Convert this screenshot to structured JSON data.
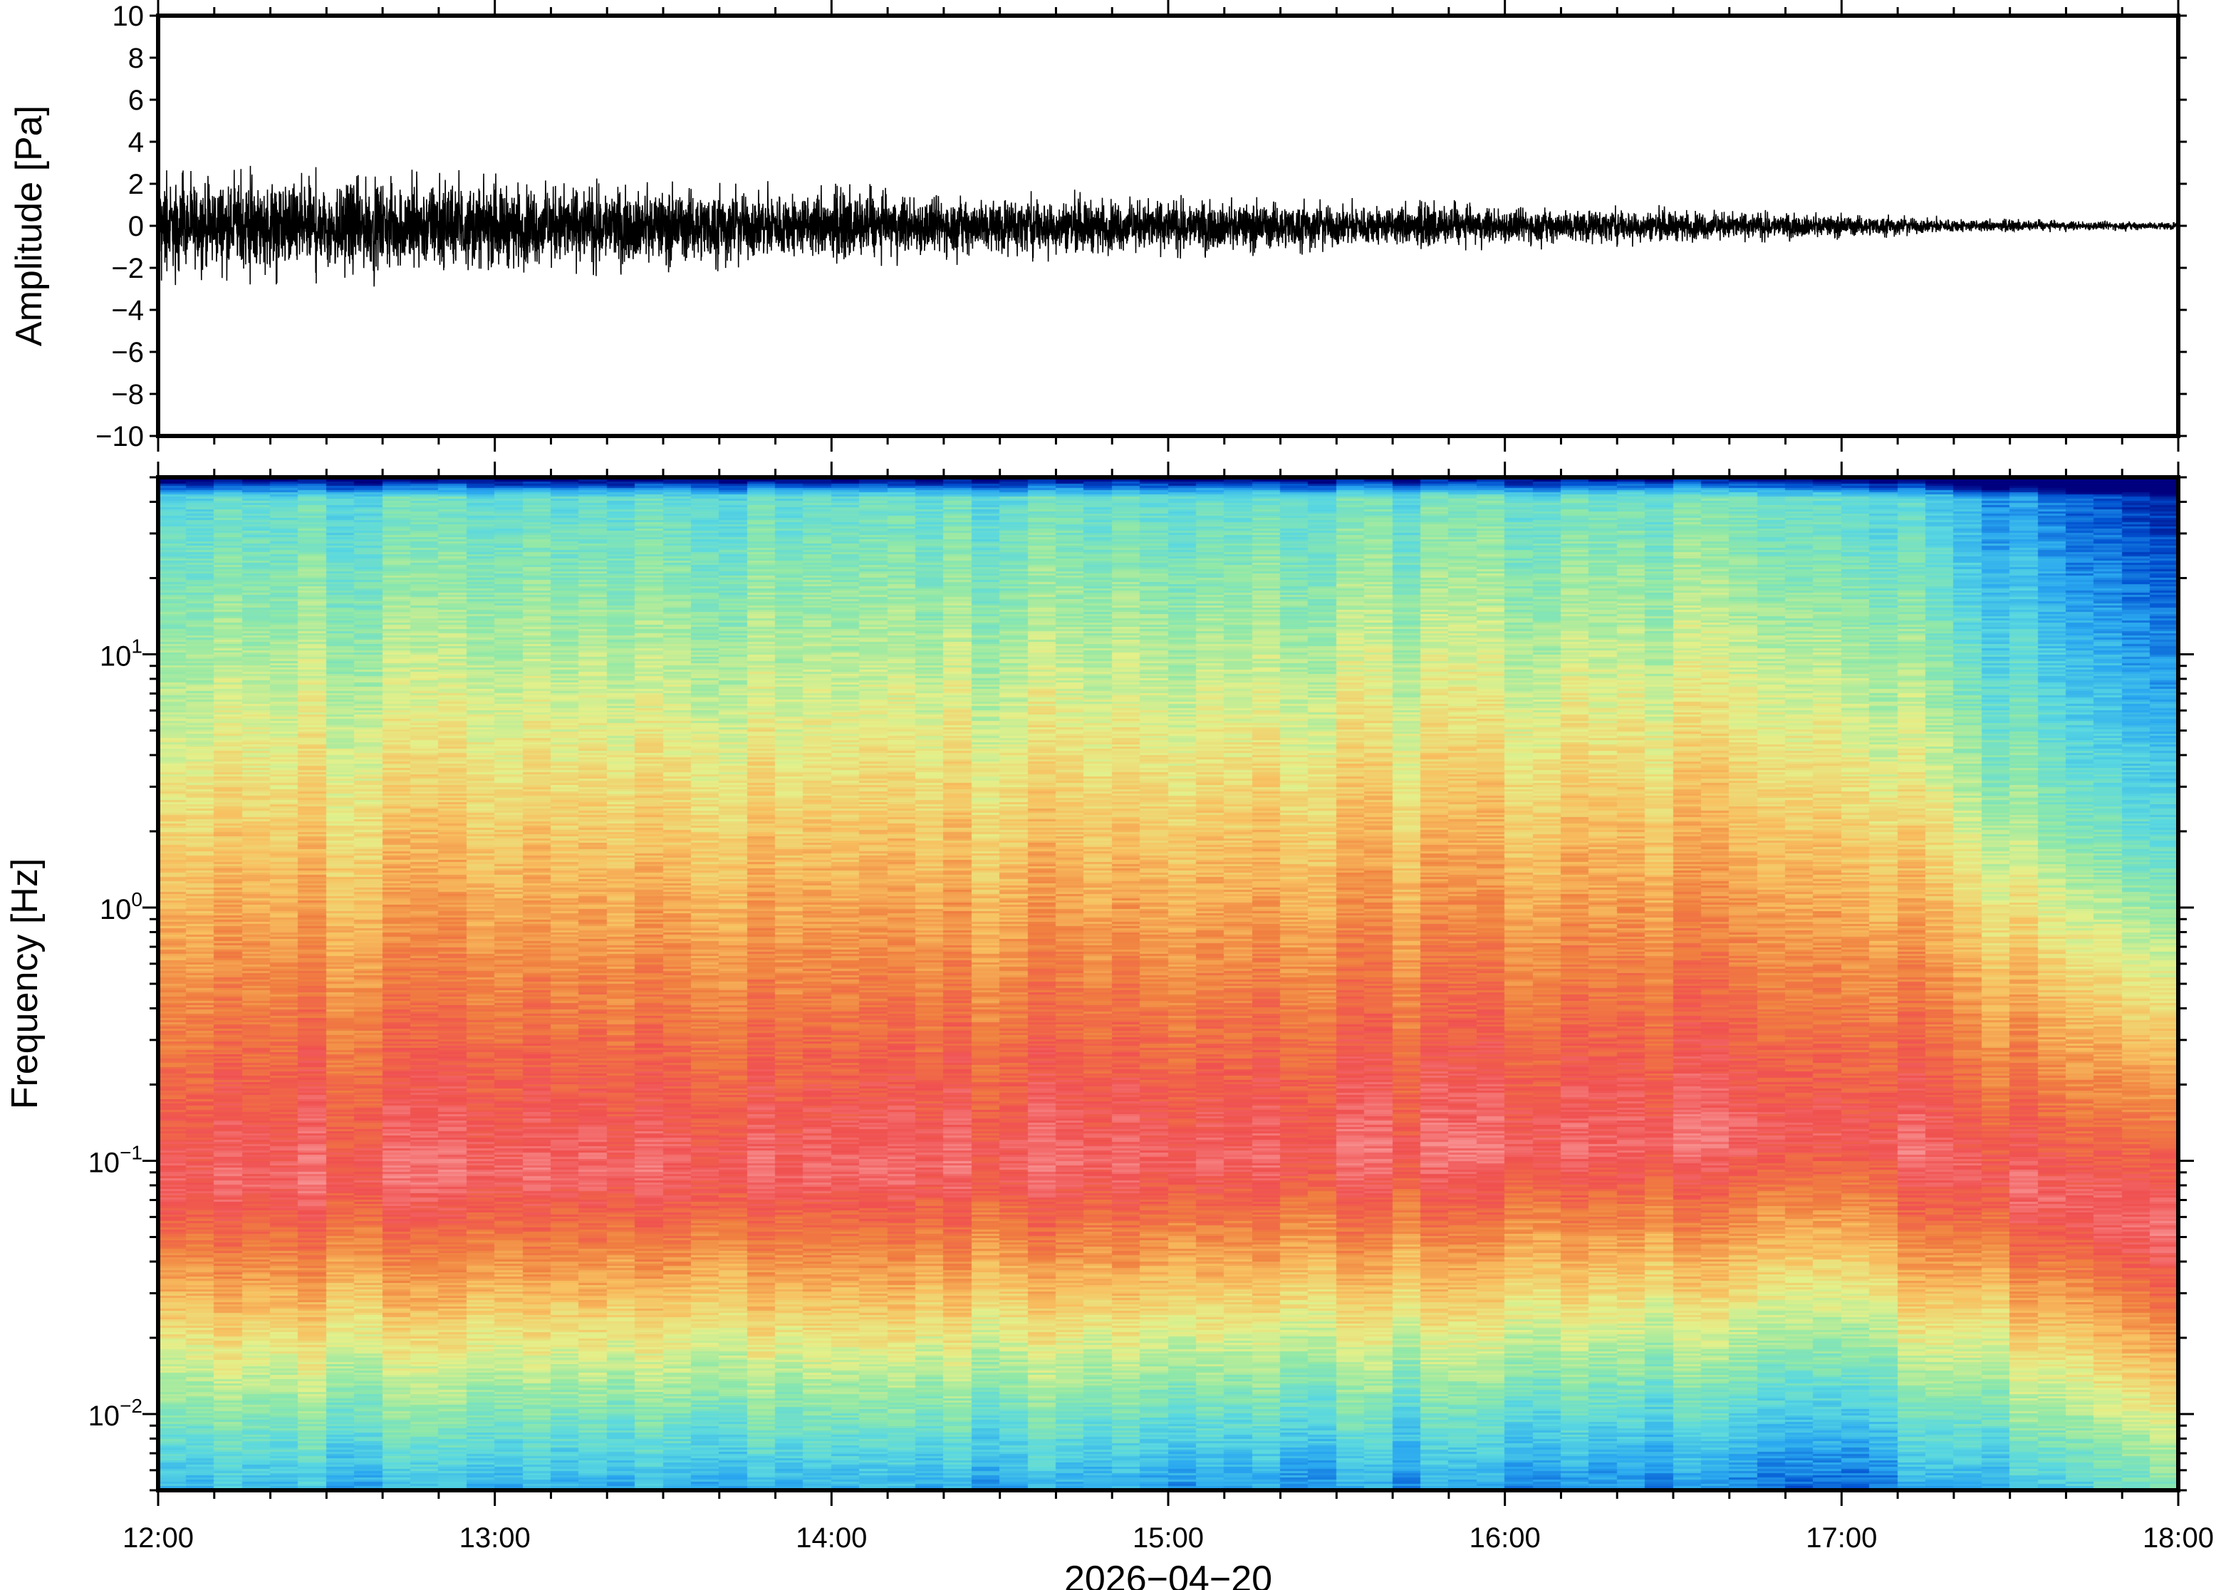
{
  "chart_data": [
    {
      "type": "line",
      "panel": "waveform",
      "ylabel": "Amplitude [Pa]",
      "ylim": [
        -10,
        10
      ],
      "yticks": [
        10,
        8,
        6,
        4,
        2,
        0,
        -2,
        -4,
        -6,
        -8,
        -10
      ],
      "ytick_labels": [
        "10",
        "8",
        "6",
        "4",
        "2",
        "0",
        "−2",
        "−4",
        "−6",
        "−8",
        "−10"
      ],
      "xlim": [
        "12:00",
        "18:00"
      ],
      "series": [
        {
          "envelope_time": [
            "12:00",
            "12:30",
            "13:00",
            "13:30",
            "14:00",
            "14:30",
            "15:00",
            "15:30",
            "16:00",
            "16:30",
            "17:00",
            "17:30",
            "18:00"
          ],
          "envelope_max": [
            3.6,
            3.2,
            2.9,
            2.6,
            2.5,
            2.1,
            1.9,
            1.6,
            1.4,
            1.2,
            0.8,
            0.4,
            0.3
          ],
          "envelope_min": [
            -3.0,
            -3.8,
            -3.4,
            -2.8,
            -2.4,
            -2.2,
            -1.9,
            -1.6,
            -1.4,
            -1.1,
            -0.8,
            -0.4,
            -0.3
          ],
          "color": "#000000"
        }
      ]
    },
    {
      "type": "heatmap",
      "panel": "spectrogram",
      "ylabel": "Frequency [Hz]",
      "yscale": "log",
      "ylim": [
        0.005,
        50
      ],
      "yticks": [
        0.01,
        0.1,
        1,
        10
      ],
      "ytick_labels": [
        {
          "base": "10",
          "exp": "−2"
        },
        {
          "base": "10",
          "exp": "−1"
        },
        {
          "base": "10",
          "exp": "0"
        },
        {
          "base": "10",
          "exp": "1"
        }
      ],
      "xlabel": "2026−04−20",
      "xlim": [
        "12:00",
        "18:00"
      ],
      "xtick_labels": [
        "12:00",
        "13:00",
        "14:00",
        "15:00",
        "16:00",
        "17:00",
        "18:00"
      ],
      "colormap": [
        "#00007f",
        "#0050d0",
        "#2aa8f0",
        "#5ad8e0",
        "#90e8a8",
        "#e4f08a",
        "#f8c060",
        "#f08040",
        "#f05050",
        "#f89090"
      ],
      "peak_frequency_hz": {
        "time": [
          "12:00",
          "13:00",
          "14:00",
          "15:00",
          "16:00",
          "17:00",
          "18:00"
        ],
        "value": [
          0.08,
          0.09,
          0.09,
          0.1,
          0.11,
          0.13,
          0.05
        ]
      }
    }
  ]
}
